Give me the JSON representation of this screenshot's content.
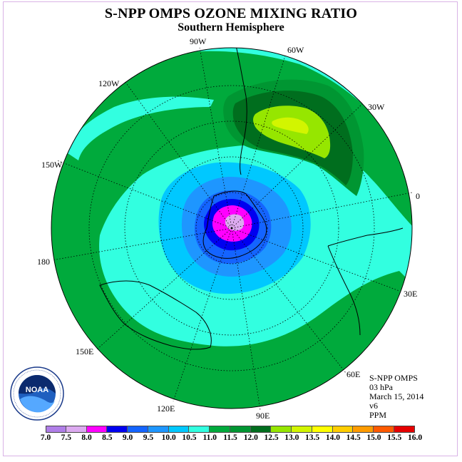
{
  "title": "S-NPP OMPS OZONE MIXING RATIO",
  "subtitle": "Southern Hemisphere",
  "longitude_labels": [
    "90W",
    "60W",
    "120W",
    "30W",
    "150W",
    "0",
    "180",
    "30E",
    "150E",
    "60E",
    "120E",
    "90E"
  ],
  "info": {
    "instrument": "S-NPP OMPS",
    "level": "03 hPa",
    "date": "March 15, 2014",
    "version": "v6",
    "units": "PPM"
  },
  "logo": {
    "text": "NOAA",
    "ring_text": "NATIONAL OCEANIC AND ATMOSPHERIC ADMINISTRATION · U.S. DEPARTMENT OF COMMERCE"
  },
  "colorbar": {
    "ticks": [
      "7.0",
      "7.5",
      "8.0",
      "8.5",
      "9.0",
      "9.5",
      "10.0",
      "10.5",
      "11.0",
      "11.5",
      "12.0",
      "12.5",
      "13.0",
      "13.5",
      "14.0",
      "14.5",
      "15.0",
      "15.5",
      "16.0"
    ],
    "colors": [
      "#b07ee8",
      "#dcaaf0",
      "#ff00ff",
      "#0000f0",
      "#1464ff",
      "#1e96ff",
      "#00c8ff",
      "#32ffe0",
      "#00aa3c",
      "#009632",
      "#006e1e",
      "#96e600",
      "#d2f500",
      "#ffff00",
      "#ffcd00",
      "#ff9b00",
      "#ff5a00",
      "#e60000",
      "#7d4b2d"
    ]
  }
}
